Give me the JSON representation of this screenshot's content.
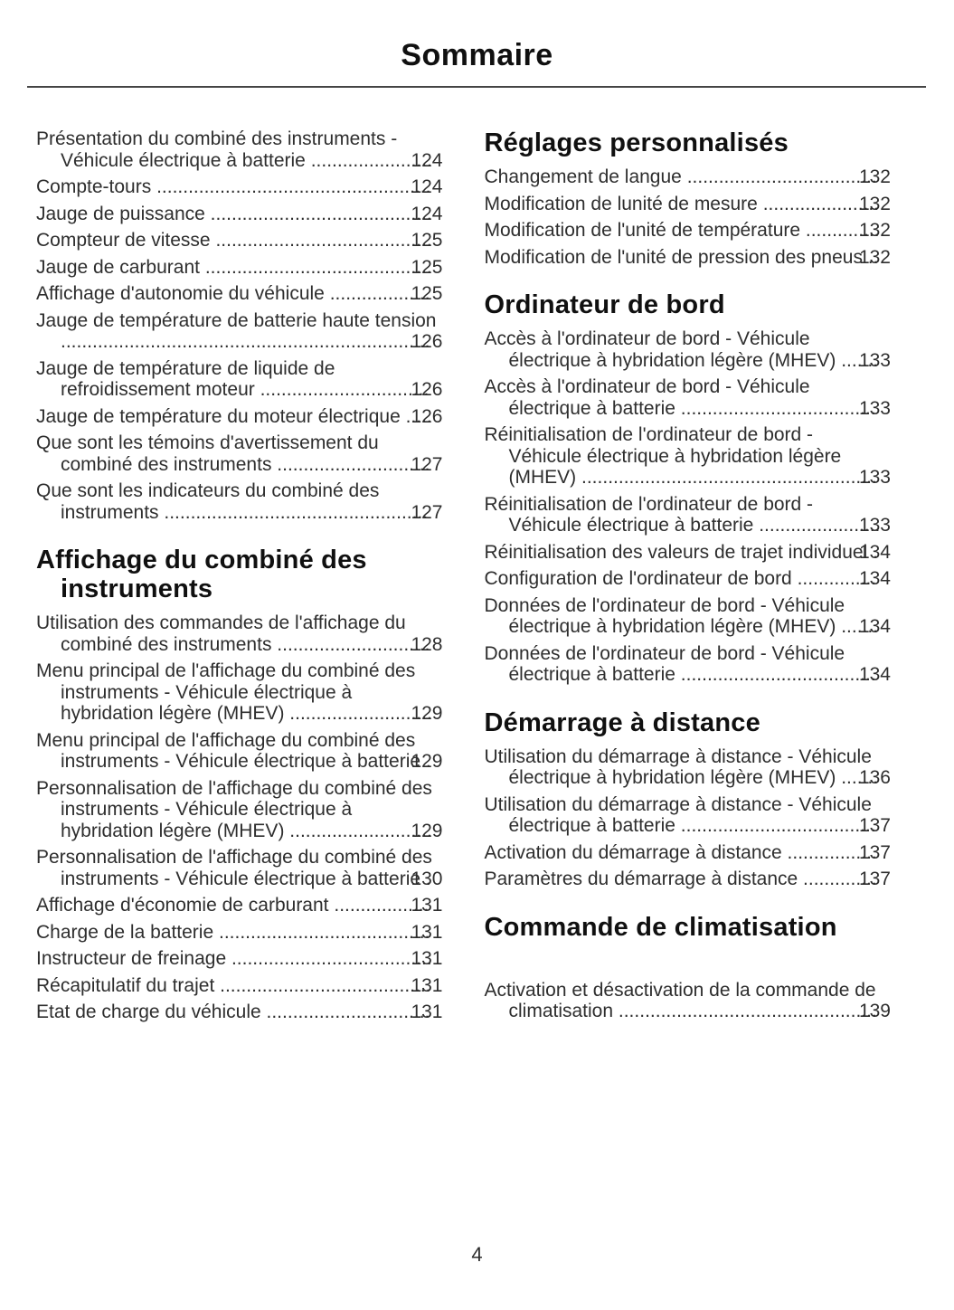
{
  "page": {
    "title": "Sommaire",
    "number": "4"
  },
  "colors": {
    "text": "#2e2e2e",
    "heading": "#101010",
    "rule": "#454545",
    "background": "#ffffff"
  },
  "columns": [
    {
      "blocks": [
        {
          "type": "entry",
          "text": "Présentation du combiné des instruments - Véhicule électrique à batterie",
          "page": "124"
        },
        {
          "type": "entry",
          "text": "Compte-tours",
          "page": "124"
        },
        {
          "type": "entry",
          "text": "Jauge de puissance",
          "page": "124"
        },
        {
          "type": "entry",
          "text": "Compteur de vitesse",
          "page": "125"
        },
        {
          "type": "entry",
          "text": "Jauge de carburant",
          "page": "125"
        },
        {
          "type": "entry",
          "text": "Affichage d'autonomie du véhicule",
          "page": "125"
        },
        {
          "type": "entry",
          "text": "Jauge de température de batterie haute tension",
          "page": "126"
        },
        {
          "type": "entry",
          "text": "Jauge de température de liquide de refroidissement moteur",
          "page": "126"
        },
        {
          "type": "entry",
          "text": "Jauge de température du moteur électrique",
          "page": "126"
        },
        {
          "type": "entry",
          "text": "Que sont les témoins d'avertissement du combiné des instruments",
          "page": "127"
        },
        {
          "type": "entry",
          "text": "Que sont les indicateurs du combiné des instruments",
          "page": "127"
        },
        {
          "type": "heading",
          "text": "Affichage du combiné des instruments"
        },
        {
          "type": "entry",
          "text": "Utilisation des commandes de l'affichage du combiné des instruments",
          "page": "128"
        },
        {
          "type": "entry",
          "text": "Menu principal de l'affichage du combiné des instruments - Véhicule électrique à hybridation légère (MHEV)",
          "page": "129"
        },
        {
          "type": "entry",
          "text": "Menu principal de l'affichage du combiné des instruments - Véhicule électrique à batterie",
          "page": "129"
        },
        {
          "type": "entry",
          "text": "Personnalisation de l'affichage du combiné des instruments - Véhicule électrique à hybridation légère (MHEV)",
          "page": "129"
        },
        {
          "type": "entry",
          "text": "Personnalisation de l'affichage du combiné des instruments - Véhicule électrique à batterie",
          "page": "130"
        },
        {
          "type": "entry",
          "text": "Affichage d'économie de carburant",
          "page": "131"
        },
        {
          "type": "entry",
          "text": "Charge de la batterie",
          "page": "131"
        },
        {
          "type": "entry",
          "text": "Instructeur de freinage",
          "page": "131"
        },
        {
          "type": "entry",
          "text": "Récapitulatif du trajet",
          "page": "131"
        },
        {
          "type": "entry",
          "text": "Etat de charge du véhicule",
          "page": "131"
        }
      ]
    },
    {
      "blocks": [
        {
          "type": "heading",
          "text": "Réglages personnalisés"
        },
        {
          "type": "entry",
          "text": "Changement de langue",
          "page": "132"
        },
        {
          "type": "entry",
          "text": "Modification de lunité de mesure",
          "page": "132"
        },
        {
          "type": "entry",
          "text": "Modification de l'unité de température",
          "page": "132"
        },
        {
          "type": "entry",
          "text": "Modification de l'unité de pression des pneus",
          "page": "132"
        },
        {
          "type": "heading",
          "text": "Ordinateur de bord"
        },
        {
          "type": "entry",
          "text": "Accès à l'ordinateur de bord - Véhicule électrique à hybridation légère (MHEV)",
          "page": "133"
        },
        {
          "type": "entry",
          "text": "Accès à l'ordinateur de bord - Véhicule électrique à batterie",
          "page": "133"
        },
        {
          "type": "entry",
          "text": "Réinitialisation de l'ordinateur de bord - Véhicule électrique à hybridation légère (MHEV)",
          "page": "133"
        },
        {
          "type": "entry",
          "text": "Réinitialisation de l'ordinateur de bord - Véhicule électrique à batterie",
          "page": "133"
        },
        {
          "type": "entry",
          "text": "Réinitialisation des valeurs de trajet individuel",
          "page": "134"
        },
        {
          "type": "entry",
          "text": "Configuration de l'ordinateur de bord",
          "page": "134"
        },
        {
          "type": "entry",
          "text": "Données de l'ordinateur de bord - Véhicule électrique à hybridation légère (MHEV)",
          "page": "134"
        },
        {
          "type": "entry",
          "text": "Données de l'ordinateur de bord - Véhicule électrique à batterie",
          "page": "134"
        },
        {
          "type": "heading",
          "text": "Démarrage à distance"
        },
        {
          "type": "entry",
          "text": "Utilisation du démarrage à distance - Véhicule électrique à hybridation légère (MHEV)",
          "page": "136"
        },
        {
          "type": "entry",
          "text": "Utilisation du démarrage à distance - Véhicule électrique à batterie",
          "page": "137"
        },
        {
          "type": "entry",
          "text": "Activation du démarrage à distance",
          "page": "137"
        },
        {
          "type": "entry",
          "text": "Paramètres du démarrage à distance",
          "page": "137"
        },
        {
          "type": "heading",
          "text": "Commande de climatisation"
        },
        {
          "type": "spacer"
        },
        {
          "type": "entry",
          "text": "Activation et désactivation de la commande de climatisation",
          "page": "139"
        }
      ]
    }
  ]
}
